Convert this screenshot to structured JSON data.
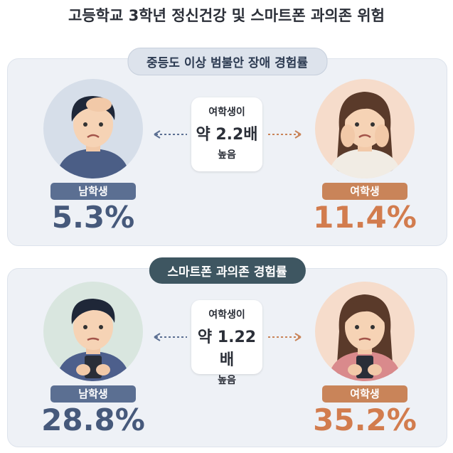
{
  "title": "고등학교 3학년 정신건강 및 스마트폰 과의존 위험",
  "sections": [
    {
      "heading": "중등도 이상 범불안 장애 경험률",
      "male": {
        "label": "남학생",
        "value": "5.3%"
      },
      "female": {
        "label": "여학생",
        "value": "11.4%"
      },
      "comparison": [
        "여학생이",
        "약 2.2배",
        "높음"
      ]
    },
    {
      "heading": "스마트폰 과의존 경험률",
      "male": {
        "label": "남학생",
        "value": "28.8%"
      },
      "female": {
        "label": "여학생",
        "value": "35.2%"
      },
      "comparison": [
        "여학생이",
        "약 1.22배",
        "높음"
      ]
    }
  ]
}
